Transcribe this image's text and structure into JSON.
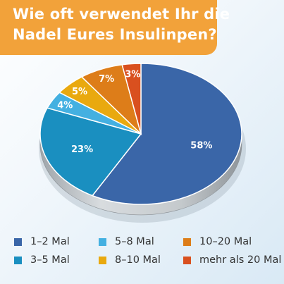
{
  "header": {
    "title_line1": "Wie oft verwendet Ihr die",
    "title_line2": "Nadel Eures Insulinpen?"
  },
  "colors": {
    "title_background": "#f2a23a",
    "title_text": "#ffffff",
    "rim": "#c9cdd0"
  },
  "chart_data": {
    "type": "pie",
    "title": "Wie oft verwendet Ihr die Nadel Eures Insulinpen?",
    "legend_position": "bottom",
    "three_d": true,
    "slices": [
      {
        "label": "1–2 Mal",
        "value": 58,
        "value_label": "58%",
        "color": "#3a66a8"
      },
      {
        "label": "3–5 Mal",
        "value": 23,
        "value_label": "23%",
        "color": "#1a8fc0"
      },
      {
        "label": "5–8 Mal",
        "value": 4,
        "value_label": "4%",
        "color": "#44b0e1"
      },
      {
        "label": "8–10 Mal",
        "value": 5,
        "value_label": "5%",
        "color": "#e9a90f"
      },
      {
        "label": "10–20 Mal",
        "value": 7,
        "value_label": "7%",
        "color": "#dd7d19"
      },
      {
        "label": "mehr als 20 Mal",
        "value": 3,
        "value_label": "3%",
        "color": "#d9501f"
      }
    ]
  }
}
